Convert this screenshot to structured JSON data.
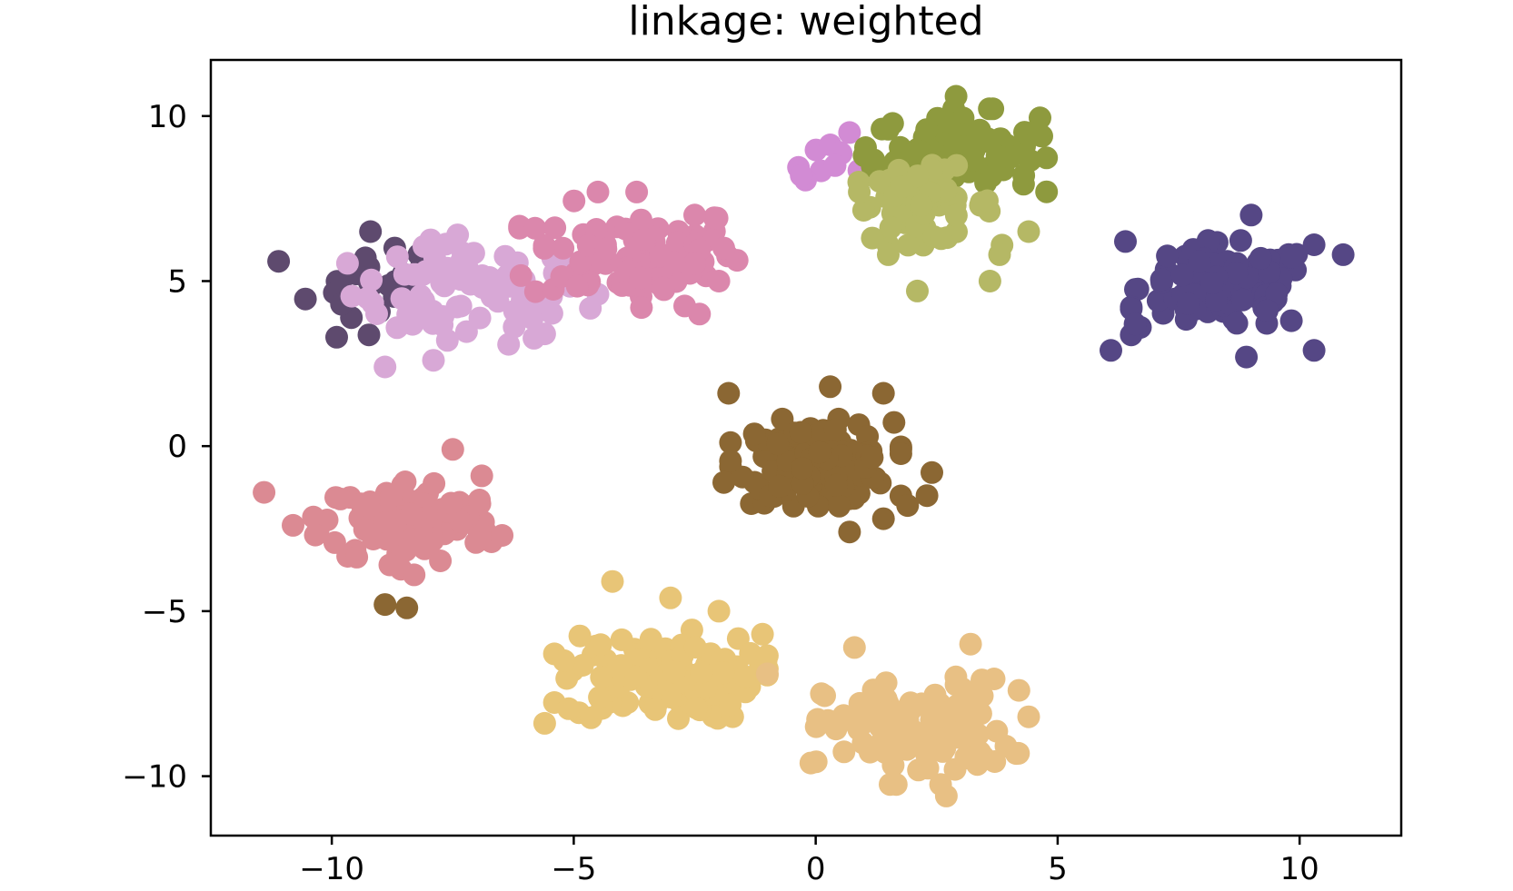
{
  "chart_data": {
    "type": "scatter",
    "title": "linkage: weighted",
    "xlabel": "",
    "ylabel": "",
    "xlim": [
      -12.5,
      12.1
    ],
    "ylim": [
      -11.8,
      11.7
    ],
    "xticks": [
      -10,
      -5,
      0,
      5,
      10
    ],
    "xtick_labels": [
      "−10",
      "−5",
      "0",
      "5",
      "10"
    ],
    "yticks": [
      -10,
      -5,
      0,
      5,
      10
    ],
    "ytick_labels": [
      "−10",
      "−5",
      "0",
      "5",
      "10"
    ],
    "grid": false,
    "legend": "none",
    "clusters": [
      {
        "color": "#5e4a6e",
        "center": [
          -9.0,
          4.8
        ],
        "spread": [
          0.75,
          0.65
        ],
        "count": 20,
        "outliers": [
          [
            -11.1,
            5.6
          ],
          [
            -9.8,
            4.3
          ],
          [
            -9.9,
            3.3
          ],
          [
            -9.2,
            6.5
          ],
          [
            -8.7,
            6.0
          ],
          [
            -8.2,
            5.8
          ]
        ]
      },
      {
        "color": "#d8a8d6",
        "center": [
          -7.2,
          4.6
        ],
        "spread": [
          1.2,
          0.75
        ],
        "count": 75,
        "outliers": [
          [
            -8.9,
            2.4
          ],
          [
            -7.9,
            2.6
          ],
          [
            -7.4,
            6.4
          ],
          [
            -5.6,
            3.4
          ],
          [
            -4.5,
            4.6
          ]
        ]
      },
      {
        "color": "#db87ac",
        "center": [
          -3.7,
          5.8
        ],
        "spread": [
          1.1,
          0.75
        ],
        "count": 85,
        "outliers": [
          [
            -5.8,
            6.6
          ],
          [
            -4.5,
            7.7
          ],
          [
            -3.7,
            7.7
          ],
          [
            -2.5,
            7.0
          ],
          [
            -3.6,
            4.2
          ],
          [
            -2.4,
            4.0
          ],
          [
            -2.0,
            5.0
          ],
          [
            -1.9,
            6.0
          ]
        ]
      },
      {
        "color": "#d28bd4",
        "center": [
          0.2,
          8.8
        ],
        "spread": [
          0.4,
          0.35
        ],
        "count": 8,
        "outliers": [
          [
            -0.3,
            8.2
          ],
          [
            0.7,
            9.5
          ],
          [
            0.5,
            8.9
          ],
          [
            0.4,
            8.5
          ]
        ]
      },
      {
        "color": "#8e9a3e",
        "center": [
          2.9,
          8.9
        ],
        "spread": [
          0.85,
          0.6
        ],
        "count": 85,
        "outliers": [
          [
            2.9,
            10.6
          ],
          [
            4.6,
            9.5
          ],
          [
            1.5,
            9.6
          ],
          [
            4.3,
            8.2
          ],
          [
            1.0,
            8.8
          ]
        ]
      },
      {
        "color": "#b5b865",
        "center": [
          2.2,
          7.3
        ],
        "spread": [
          0.75,
          0.55
        ],
        "count": 55,
        "outliers": [
          [
            2.1,
            4.7
          ],
          [
            1.5,
            5.8
          ],
          [
            3.6,
            5.0
          ],
          [
            3.8,
            5.8
          ],
          [
            4.4,
            6.5
          ],
          [
            0.9,
            7.7
          ]
        ]
      },
      {
        "color": "#554785",
        "center": [
          8.5,
          4.8
        ],
        "spread": [
          0.9,
          0.65
        ],
        "count": 120,
        "outliers": [
          [
            6.1,
            2.9
          ],
          [
            10.3,
            2.9
          ],
          [
            6.4,
            6.2
          ],
          [
            9.0,
            7.0
          ],
          [
            10.9,
            5.8
          ],
          [
            10.3,
            6.1
          ],
          [
            6.6,
            3.7
          ],
          [
            8.9,
            2.7
          ]
        ]
      },
      {
        "color": "#8b6733",
        "center": [
          0.0,
          -0.5
        ],
        "spread": [
          0.8,
          0.6
        ],
        "count": 140,
        "outliers": [
          [
            -1.8,
            1.6
          ],
          [
            1.4,
            1.6
          ],
          [
            2.4,
            -0.8
          ],
          [
            2.3,
            -1.5
          ],
          [
            1.9,
            -1.8
          ],
          [
            1.4,
            -2.2
          ],
          [
            0.7,
            -2.6
          ],
          [
            -1.9,
            -1.1
          ],
          [
            0.3,
            1.8
          ]
        ]
      },
      {
        "color": "#db8a93",
        "center": [
          -8.4,
          -2.3
        ],
        "spread": [
          0.9,
          0.65
        ],
        "count": 110,
        "outliers": [
          [
            -11.4,
            -1.4
          ],
          [
            -10.8,
            -2.4
          ],
          [
            -7.5,
            -0.1
          ],
          [
            -6.9,
            -0.9
          ],
          [
            -8.3,
            -3.9
          ],
          [
            -8.8,
            -3.6
          ]
        ]
      },
      {
        "color": "#8b6733",
        "center": [
          -8.6,
          -4.9
        ],
        "spread": [
          0.2,
          0.05
        ],
        "count": 0,
        "outliers": [
          [
            -8.9,
            -4.8
          ],
          [
            -8.45,
            -4.9
          ]
        ]
      },
      {
        "color": "#e8c577",
        "center": [
          -3.2,
          -7.0
        ],
        "spread": [
          1.0,
          0.65
        ],
        "count": 120,
        "outliers": [
          [
            -4.2,
            -4.1
          ],
          [
            -3.0,
            -4.6
          ],
          [
            -5.6,
            -8.4
          ],
          [
            -2.0,
            -5.0
          ],
          [
            -1.1,
            -5.7
          ],
          [
            -5.2,
            -6.5
          ]
        ]
      },
      {
        "color": "#e8c084",
        "center": [
          2.1,
          -8.6
        ],
        "spread": [
          0.95,
          0.75
        ],
        "count": 120,
        "outliers": [
          [
            2.7,
            -10.6
          ],
          [
            3.2,
            -6.0
          ],
          [
            4.2,
            -7.4
          ],
          [
            4.4,
            -8.2
          ],
          [
            -0.1,
            -9.6
          ],
          [
            0.8,
            -6.1
          ],
          [
            -1.0,
            -6.9
          ]
        ]
      }
    ]
  }
}
